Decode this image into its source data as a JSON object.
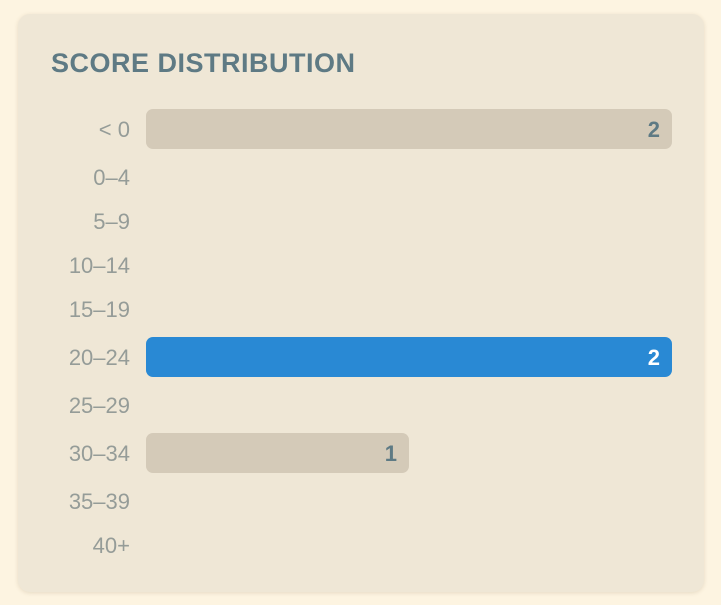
{
  "chart_data": {
    "type": "bar",
    "orientation": "horizontal",
    "title": "SCORE DISTRIBUTION",
    "categories": [
      "< 0",
      "0–4",
      "5–9",
      "10–14",
      "15–19",
      "20–24",
      "25–29",
      "30–34",
      "35–39",
      "40+"
    ],
    "values": [
      2,
      0,
      0,
      0,
      0,
      2,
      0,
      1,
      0,
      0
    ],
    "highlight": "20–24",
    "xlim": [
      0,
      2
    ]
  },
  "colors": {
    "bar": "#d4cab8",
    "bar_highlight": "#2989d4",
    "value_text": "#5e7a84",
    "value_text_highlight": "#ffffff"
  }
}
